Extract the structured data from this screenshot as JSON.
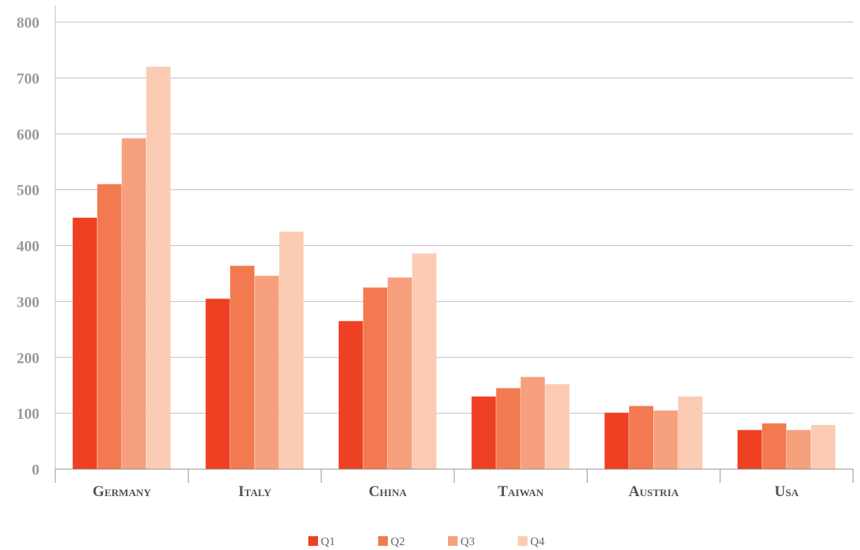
{
  "chart_data": {
    "type": "bar",
    "categories": [
      "Germany",
      "Italy",
      "China",
      "Taiwan",
      "Austria",
      "Usa"
    ],
    "series": [
      {
        "name": "Q1",
        "values": [
          450,
          305,
          265,
          130,
          101,
          70
        ]
      },
      {
        "name": "Q2",
        "values": [
          510,
          364,
          325,
          145,
          113,
          82
        ]
      },
      {
        "name": "Q3",
        "values": [
          592,
          346,
          343,
          165,
          105,
          70
        ]
      },
      {
        "name": "Q4",
        "values": [
          720,
          425,
          386,
          152,
          130,
          79
        ]
      }
    ],
    "colors": [
      "#ee4023",
      "#f37a50",
      "#f7a07d",
      "#fbcbb3"
    ],
    "ylim": [
      0,
      800
    ],
    "yticks": [
      0,
      100,
      200,
      300,
      400,
      500,
      600,
      700,
      800
    ],
    "grid": true,
    "legend_position": "bottom"
  }
}
